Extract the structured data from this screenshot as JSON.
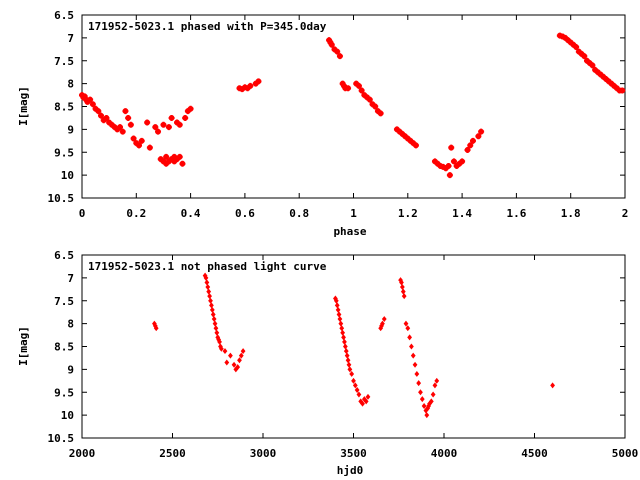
{
  "chart_data": [
    {
      "type": "scatter",
      "title": "171952-5023.1 phased with P=345.0day",
      "xlabel": "phase",
      "ylabel": "I[mag]",
      "xlim": [
        0,
        2
      ],
      "ylim": [
        10.5,
        6.5
      ],
      "y_inverted": true,
      "grid": false,
      "xticks": [
        "0",
        "0.2",
        "0.4",
        "0.6",
        "0.8",
        "1",
        "1.2",
        "1.4",
        "1.6",
        "1.8",
        "2"
      ],
      "xtick_values": [
        0,
        0.2,
        0.4,
        0.6,
        0.8,
        1.0,
        1.2,
        1.4,
        1.6,
        1.8,
        2.0
      ],
      "yticks": [
        "6.5",
        "7",
        "7.5",
        "8",
        "8.5",
        "9",
        "9.5",
        "10",
        "10.5"
      ],
      "ytick_values": [
        6.5,
        7.0,
        7.5,
        8.0,
        8.5,
        9.0,
        9.5,
        10.0,
        10.5
      ],
      "marker_color": "#ff0000",
      "series": [
        {
          "x": [
            0.0,
            0.005,
            0.01,
            0.015,
            0.02,
            0.03,
            0.04,
            0.05,
            0.06,
            0.07,
            0.08,
            0.09,
            0.1,
            0.11,
            0.12,
            0.13,
            0.14,
            0.15,
            0.16,
            0.17,
            0.18,
            0.19,
            0.2,
            0.21,
            0.22,
            0.24,
            0.25,
            0.27,
            0.28,
            0.29,
            0.3,
            0.3,
            0.31,
            0.31,
            0.32,
            0.32,
            0.33,
            0.33,
            0.34,
            0.34,
            0.35,
            0.35,
            0.36,
            0.36,
            0.37,
            0.38,
            0.39,
            0.4,
            0.58,
            0.59,
            0.6,
            0.61,
            0.62,
            0.64,
            0.65,
            0.91,
            0.915,
            0.92,
            0.93,
            0.94,
            0.95,
            0.96,
            0.965,
            0.97,
            0.98,
            1.01,
            1.02,
            1.03,
            1.04,
            1.05,
            1.06,
            1.07,
            1.08,
            1.09,
            1.1,
            1.16,
            1.17,
            1.18,
            1.19,
            1.2,
            1.21,
            1.22,
            1.23,
            1.3,
            1.31,
            1.32,
            1.33,
            1.34,
            1.35,
            1.355,
            1.36,
            1.37,
            1.38,
            1.39,
            1.4,
            1.42,
            1.43,
            1.44,
            1.46,
            1.47,
            1.76,
            1.77,
            1.78,
            1.79,
            1.8,
            1.81,
            1.82,
            1.83,
            1.84,
            1.85,
            1.86,
            1.87,
            1.88,
            1.89,
            1.9,
            1.91,
            1.92,
            1.93,
            1.94,
            1.95,
            1.96,
            1.97,
            1.98,
            1.99
          ],
          "y": [
            8.25,
            8.3,
            8.28,
            8.35,
            8.4,
            8.35,
            8.45,
            8.55,
            8.6,
            8.7,
            8.8,
            8.75,
            8.85,
            8.9,
            8.95,
            9.0,
            8.95,
            9.05,
            8.6,
            8.75,
            8.9,
            9.2,
            9.3,
            9.35,
            9.25,
            8.85,
            9.4,
            8.95,
            9.05,
            9.65,
            9.7,
            8.9,
            9.75,
            9.6,
            9.7,
            8.95,
            9.65,
            8.75,
            9.7,
            9.6,
            8.85,
            9.65,
            9.6,
            8.9,
            9.75,
            8.75,
            8.6,
            8.55,
            8.1,
            8.12,
            8.08,
            8.1,
            8.05,
            8.0,
            7.95,
            7.05,
            7.1,
            7.15,
            7.25,
            7.3,
            7.4,
            8.0,
            8.05,
            8.1,
            8.1,
            8.0,
            8.05,
            8.15,
            8.25,
            8.3,
            8.35,
            8.45,
            8.5,
            8.6,
            8.65,
            9.0,
            9.05,
            9.1,
            9.15,
            9.2,
            9.25,
            9.3,
            9.35,
            9.7,
            9.75,
            9.8,
            9.82,
            9.85,
            9.8,
            10.0,
            9.4,
            9.7,
            9.8,
            9.75,
            9.7,
            9.45,
            9.35,
            9.25,
            9.15,
            9.05,
            6.95,
            6.97,
            7.0,
            7.05,
            7.1,
            7.15,
            7.2,
            7.3,
            7.35,
            7.4,
            7.5,
            7.55,
            7.6,
            7.7,
            7.75,
            7.8,
            7.85,
            7.9,
            7.95,
            8.0,
            8.05,
            8.1,
            8.15,
            8.15
          ]
        }
      ]
    },
    {
      "type": "scatter",
      "title": "171952-5023.1 not phased light curve",
      "xlabel": "hjd0",
      "ylabel": "I[mag]",
      "xlim": [
        2000,
        5000
      ],
      "ylim": [
        10.5,
        6.5
      ],
      "y_inverted": true,
      "grid": false,
      "xticks": [
        "2000",
        "2500",
        "3000",
        "3500",
        "4000",
        "4500",
        "5000"
      ],
      "xtick_values": [
        2000,
        2500,
        3000,
        3500,
        4000,
        4500,
        5000
      ],
      "yticks": [
        "6.5",
        "7",
        "7.5",
        "8",
        "8.5",
        "9",
        "9.5",
        "10",
        "10.5"
      ],
      "ytick_values": [
        6.5,
        7.0,
        7.5,
        8.0,
        8.5,
        9.0,
        9.5,
        10.0,
        10.5
      ],
      "marker_color": "#ff0000",
      "series": [
        {
          "x": [
            2400,
            2405,
            2410,
            2680,
            2685,
            2690,
            2695,
            2700,
            2705,
            2710,
            2715,
            2720,
            2725,
            2730,
            2735,
            2740,
            2745,
            2750,
            2755,
            2760,
            2765,
            2770,
            2790,
            2800,
            2820,
            2840,
            2850,
            2860,
            2870,
            2880,
            2890,
            3400,
            3405,
            3410,
            3415,
            3420,
            3425,
            3430,
            3435,
            3440,
            3445,
            3450,
            3455,
            3460,
            3465,
            3470,
            3475,
            3480,
            3490,
            3500,
            3510,
            3520,
            3530,
            3540,
            3550,
            3560,
            3570,
            3580,
            3650,
            3655,
            3660,
            3670,
            3760,
            3765,
            3770,
            3775,
            3780,
            3790,
            3800,
            3810,
            3820,
            3830,
            3840,
            3850,
            3860,
            3870,
            3880,
            3890,
            3900,
            3905,
            3910,
            3915,
            3920,
            3930,
            3940,
            3950,
            3960,
            4600
          ],
          "y": [
            8.0,
            8.05,
            8.1,
            6.95,
            7.0,
            7.1,
            7.2,
            7.3,
            7.4,
            7.5,
            7.6,
            7.7,
            7.8,
            7.9,
            8.0,
            8.1,
            8.2,
            8.3,
            8.35,
            8.4,
            8.5,
            8.55,
            8.6,
            8.85,
            8.7,
            8.9,
            9.0,
            8.95,
            8.8,
            8.7,
            8.6,
            7.45,
            7.5,
            7.6,
            7.7,
            7.8,
            7.9,
            8.0,
            8.1,
            8.2,
            8.3,
            8.4,
            8.5,
            8.6,
            8.7,
            8.8,
            8.9,
            9.0,
            9.1,
            9.25,
            9.35,
            9.45,
            9.55,
            9.7,
            9.75,
            9.65,
            9.7,
            9.6,
            8.1,
            8.05,
            8.0,
            7.9,
            7.05,
            7.1,
            7.2,
            7.3,
            7.4,
            8.0,
            8.1,
            8.3,
            8.5,
            8.7,
            8.9,
            9.1,
            9.3,
            9.5,
            9.65,
            9.8,
            9.9,
            10.0,
            9.85,
            9.8,
            9.75,
            9.7,
            9.55,
            9.35,
            9.25,
            9.35
          ]
        }
      ]
    }
  ]
}
